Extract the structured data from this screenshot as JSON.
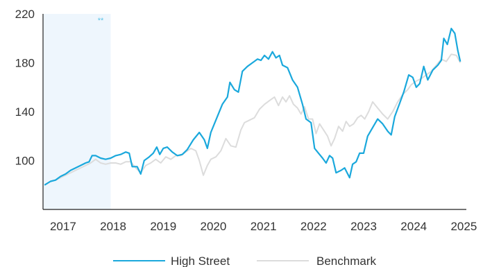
{
  "chart_data": {
    "type": "line",
    "ylim": [
      60,
      220
    ],
    "xlim": [
      2016.6,
      2025.05
    ],
    "y_ticks": [
      100,
      140,
      180,
      220
    ],
    "x_ticks": [
      2017,
      2018,
      2019,
      2020,
      2021,
      2022,
      2023,
      2024,
      2025
    ],
    "grid": false,
    "legend_position": "bottom-center",
    "shaded_region": {
      "x_start": 2016.6,
      "x_end": 2017.95,
      "label": "**"
    },
    "series": [
      {
        "name": "High Street",
        "color": "#1aa8dc",
        "points": [
          [
            2016.63,
            80
          ],
          [
            2016.75,
            83
          ],
          [
            2016.85,
            84
          ],
          [
            2016.95,
            87
          ],
          [
            2017.05,
            89
          ],
          [
            2017.15,
            92
          ],
          [
            2017.25,
            94
          ],
          [
            2017.35,
            96
          ],
          [
            2017.45,
            98
          ],
          [
            2017.52,
            99
          ],
          [
            2017.58,
            104
          ],
          [
            2017.65,
            104
          ],
          [
            2017.75,
            102
          ],
          [
            2017.85,
            101
          ],
          [
            2017.95,
            102
          ],
          [
            2018.05,
            104
          ],
          [
            2018.15,
            105
          ],
          [
            2018.25,
            107
          ],
          [
            2018.32,
            106
          ],
          [
            2018.38,
            95
          ],
          [
            2018.48,
            95
          ],
          [
            2018.55,
            89
          ],
          [
            2018.62,
            100
          ],
          [
            2018.72,
            103
          ],
          [
            2018.8,
            106
          ],
          [
            2018.87,
            111
          ],
          [
            2018.93,
            105
          ],
          [
            2019.0,
            110
          ],
          [
            2019.08,
            111
          ],
          [
            2019.18,
            107
          ],
          [
            2019.28,
            104
          ],
          [
            2019.38,
            105
          ],
          [
            2019.48,
            109
          ],
          [
            2019.6,
            117
          ],
          [
            2019.72,
            123
          ],
          [
            2019.82,
            117
          ],
          [
            2019.88,
            110
          ],
          [
            2019.95,
            123
          ],
          [
            2020.08,
            136
          ],
          [
            2020.18,
            146
          ],
          [
            2020.28,
            152
          ],
          [
            2020.33,
            164
          ],
          [
            2020.42,
            158
          ],
          [
            2020.5,
            156
          ],
          [
            2020.58,
            173
          ],
          [
            2020.68,
            177
          ],
          [
            2020.78,
            180
          ],
          [
            2020.88,
            183
          ],
          [
            2020.95,
            182
          ],
          [
            2021.02,
            186
          ],
          [
            2021.1,
            183
          ],
          [
            2021.18,
            189
          ],
          [
            2021.25,
            184
          ],
          [
            2021.32,
            186
          ],
          [
            2021.38,
            178
          ],
          [
            2021.48,
            176
          ],
          [
            2021.58,
            166
          ],
          [
            2021.68,
            160
          ],
          [
            2021.78,
            146
          ],
          [
            2021.85,
            134
          ],
          [
            2021.95,
            131
          ],
          [
            2022.02,
            110
          ],
          [
            2022.1,
            106
          ],
          [
            2022.18,
            102
          ],
          [
            2022.25,
            98
          ],
          [
            2022.32,
            104
          ],
          [
            2022.38,
            102
          ],
          [
            2022.45,
            90
          ],
          [
            2022.55,
            92
          ],
          [
            2022.62,
            94
          ],
          [
            2022.72,
            86
          ],
          [
            2022.78,
            97
          ],
          [
            2022.85,
            99
          ],
          [
            2022.92,
            106
          ],
          [
            2023.0,
            106
          ],
          [
            2023.08,
            120
          ],
          [
            2023.18,
            127
          ],
          [
            2023.28,
            134
          ],
          [
            2023.38,
            130
          ],
          [
            2023.48,
            124
          ],
          [
            2023.55,
            121
          ],
          [
            2023.62,
            136
          ],
          [
            2023.72,
            147
          ],
          [
            2023.8,
            156
          ],
          [
            2023.9,
            170
          ],
          [
            2023.98,
            168
          ],
          [
            2024.05,
            160
          ],
          [
            2024.12,
            163
          ],
          [
            2024.2,
            177
          ],
          [
            2024.28,
            166
          ],
          [
            2024.38,
            174
          ],
          [
            2024.48,
            178
          ],
          [
            2024.55,
            182
          ],
          [
            2024.6,
            200
          ],
          [
            2024.67,
            195
          ],
          [
            2024.75,
            208
          ],
          [
            2024.82,
            204
          ],
          [
            2024.88,
            190
          ],
          [
            2024.93,
            181
          ]
        ]
      },
      {
        "name": "Benchmark",
        "color": "#dcdcdc",
        "points": [
          [
            2016.63,
            80
          ],
          [
            2016.75,
            83
          ],
          [
            2016.85,
            84
          ],
          [
            2016.95,
            86
          ],
          [
            2017.05,
            88
          ],
          [
            2017.15,
            90
          ],
          [
            2017.25,
            92
          ],
          [
            2017.35,
            94
          ],
          [
            2017.45,
            96
          ],
          [
            2017.55,
            98
          ],
          [
            2017.65,
            101
          ],
          [
            2017.75,
            98
          ],
          [
            2017.85,
            97
          ],
          [
            2017.95,
            98
          ],
          [
            2018.05,
            98
          ],
          [
            2018.15,
            97
          ],
          [
            2018.25,
            99
          ],
          [
            2018.35,
            99
          ],
          [
            2018.45,
            94
          ],
          [
            2018.55,
            90
          ],
          [
            2018.65,
            96
          ],
          [
            2018.75,
            98
          ],
          [
            2018.85,
            101
          ],
          [
            2018.95,
            98
          ],
          [
            2019.05,
            103
          ],
          [
            2019.15,
            101
          ],
          [
            2019.25,
            104
          ],
          [
            2019.35,
            104
          ],
          [
            2019.45,
            107
          ],
          [
            2019.55,
            110
          ],
          [
            2019.65,
            108
          ],
          [
            2019.72,
            100
          ],
          [
            2019.8,
            88
          ],
          [
            2019.88,
            96
          ],
          [
            2019.95,
            101
          ],
          [
            2020.05,
            103
          ],
          [
            2020.15,
            108
          ],
          [
            2020.25,
            118
          ],
          [
            2020.35,
            112
          ],
          [
            2020.45,
            111
          ],
          [
            2020.55,
            125
          ],
          [
            2020.62,
            131
          ],
          [
            2020.72,
            133
          ],
          [
            2020.82,
            135
          ],
          [
            2020.92,
            142
          ],
          [
            2021.02,
            146
          ],
          [
            2021.12,
            149
          ],
          [
            2021.22,
            152
          ],
          [
            2021.3,
            145
          ],
          [
            2021.38,
            152
          ],
          [
            2021.45,
            148
          ],
          [
            2021.52,
            153
          ],
          [
            2021.6,
            146
          ],
          [
            2021.68,
            143
          ],
          [
            2021.75,
            138
          ],
          [
            2021.82,
            144
          ],
          [
            2021.9,
            134
          ],
          [
            2021.98,
            134
          ],
          [
            2022.05,
            122
          ],
          [
            2022.12,
            130
          ],
          [
            2022.2,
            125
          ],
          [
            2022.28,
            120
          ],
          [
            2022.35,
            112
          ],
          [
            2022.42,
            118
          ],
          [
            2022.5,
            128
          ],
          [
            2022.58,
            124
          ],
          [
            2022.65,
            132
          ],
          [
            2022.72,
            128
          ],
          [
            2022.8,
            130
          ],
          [
            2022.88,
            135
          ],
          [
            2022.95,
            137
          ],
          [
            2023.02,
            134
          ],
          [
            2023.1,
            140
          ],
          [
            2023.18,
            148
          ],
          [
            2023.28,
            143
          ],
          [
            2023.38,
            138
          ],
          [
            2023.48,
            134
          ],
          [
            2023.58,
            140
          ],
          [
            2023.68,
            148
          ],
          [
            2023.78,
            154
          ],
          [
            2023.88,
            158
          ],
          [
            2023.95,
            162
          ],
          [
            2024.05,
            165
          ],
          [
            2024.15,
            167
          ],
          [
            2024.25,
            170
          ],
          [
            2024.35,
            173
          ],
          [
            2024.45,
            178
          ],
          [
            2024.55,
            183
          ],
          [
            2024.65,
            181
          ],
          [
            2024.75,
            187
          ],
          [
            2024.85,
            186
          ],
          [
            2024.93,
            180
          ]
        ]
      }
    ]
  },
  "legend": [
    {
      "label": "High Street",
      "color": "#1aa8dc"
    },
    {
      "label": "Benchmark",
      "color": "#dcdcdc"
    }
  ],
  "annotation": {
    "text": "**",
    "color": "#5cc3e6"
  }
}
